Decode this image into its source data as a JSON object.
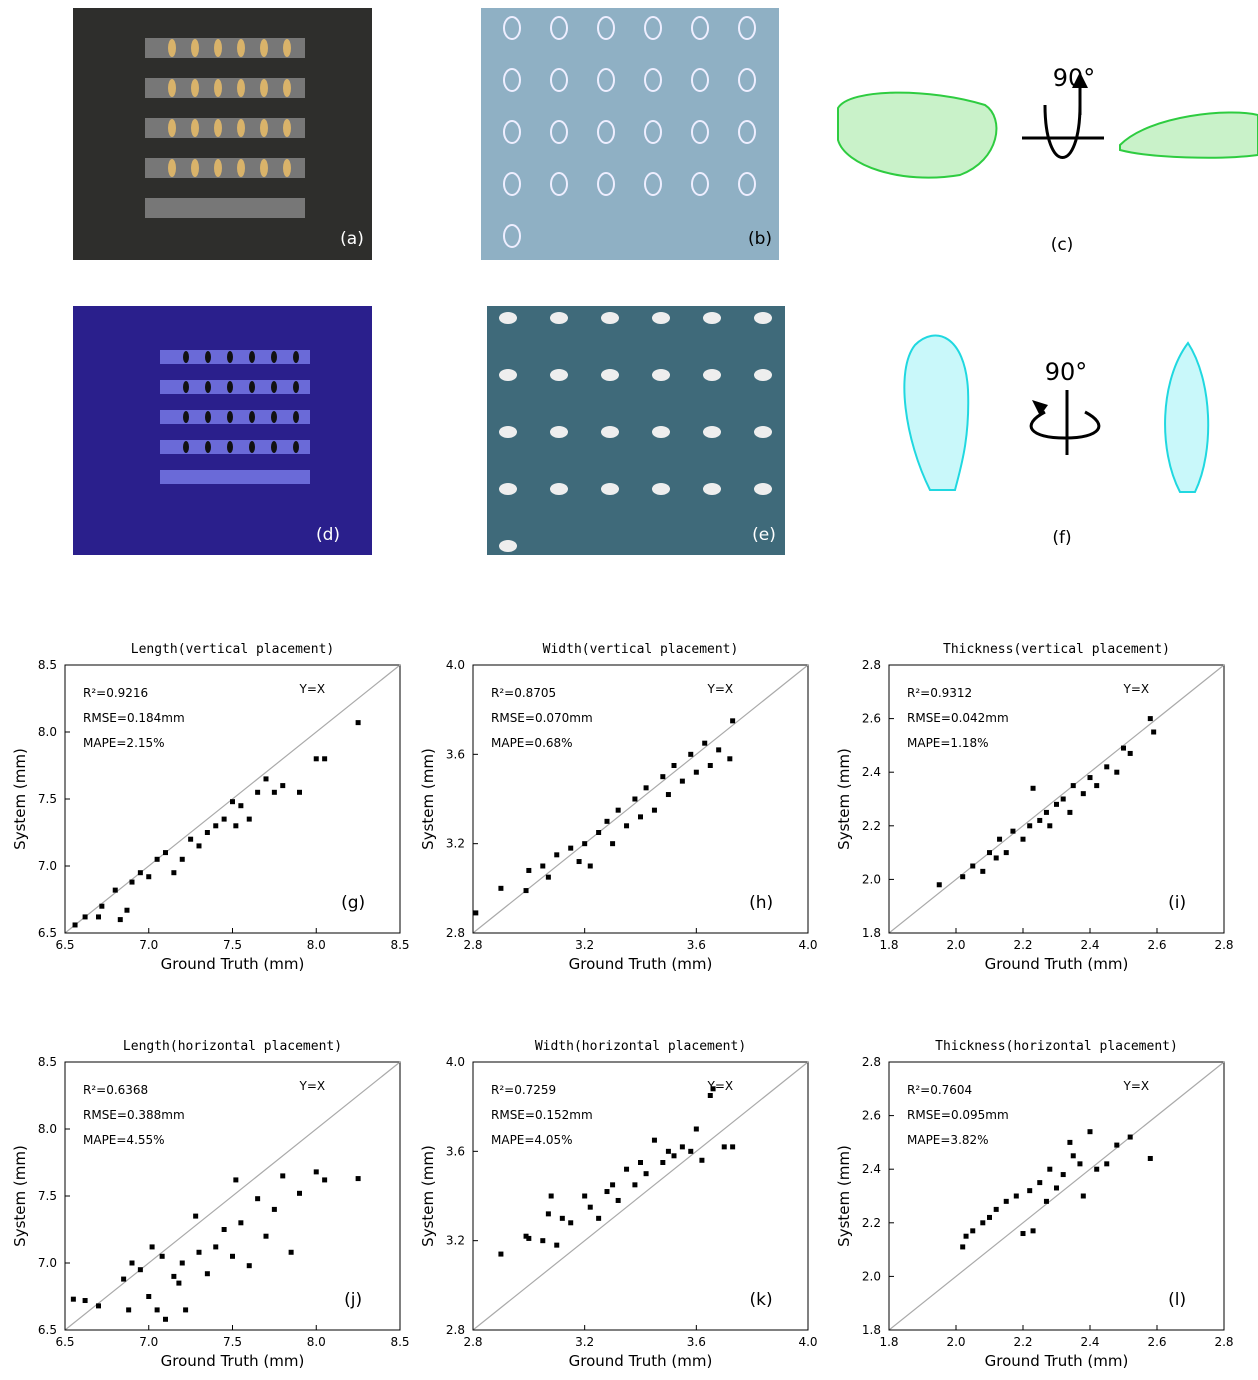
{
  "panels": {
    "labels": [
      "(a)",
      "(b)",
      "(c)",
      "(d)",
      "(e)",
      "(f)"
    ],
    "rotation_labels": [
      "90°",
      "90°"
    ]
  },
  "chart_data": [
    {
      "type": "scatter",
      "title": "Length(vertical placement)",
      "xlabel": "Ground Truth (mm)",
      "ylabel": "System (mm)",
      "panel_label": "(g)",
      "annotations": [
        "R²=0.9216",
        "RMSE=0.184mm",
        "MAPE=2.15%"
      ],
      "reference_label": "Y=X",
      "color": "#000000",
      "xlim": [
        6.5,
        8.5
      ],
      "ylim": [
        6.5,
        8.5
      ],
      "xticks": [
        6.5,
        {
          "value": 7,
          "label": "7.0"
        },
        7.5,
        {
          "value": 8,
          "label": "8.0"
        },
        8.5
      ],
      "yticks": [
        6.5,
        {
          "value": 7,
          "label": "7.0"
        },
        7.5,
        {
          "value": 8,
          "label": "8.0"
        },
        8.5
      ],
      "x": [
        6.56,
        6.62,
        6.7,
        6.72,
        6.8,
        6.83,
        6.87,
        6.9,
        6.95,
        7.0,
        7.05,
        7.1,
        7.15,
        7.2,
        7.25,
        7.3,
        7.35,
        7.4,
        7.45,
        7.5,
        7.52,
        7.55,
        7.6,
        7.65,
        7.7,
        7.75,
        7.8,
        7.9,
        8.0,
        8.05,
        8.25
      ],
      "values": [
        6.56,
        6.62,
        6.62,
        6.7,
        6.82,
        6.6,
        6.67,
        6.88,
        6.95,
        6.92,
        7.05,
        7.1,
        6.95,
        7.05,
        7.2,
        7.15,
        7.25,
        7.3,
        7.35,
        7.48,
        7.3,
        7.45,
        7.35,
        7.55,
        7.65,
        7.55,
        7.6,
        7.55,
        7.8,
        7.8,
        8.07
      ]
    },
    {
      "type": "scatter",
      "title": "Width(vertical placement)",
      "xlabel": "Ground Truth (mm)",
      "ylabel": "System (mm)",
      "panel_label": "(h)",
      "annotations": [
        "R²=0.8705",
        "RMSE=0.070mm",
        "MAPE=0.68%"
      ],
      "reference_label": "Y=X",
      "color": "#000000",
      "xlim": [
        2.8,
        4.0
      ],
      "ylim": [
        2.8,
        4.0
      ],
      "xticks": [
        2.8,
        3.2,
        3.6,
        {
          "value": 4,
          "label": "4.0"
        }
      ],
      "yticks": [
        2.8,
        3.2,
        3.6,
        {
          "value": 4,
          "label": "4.0"
        }
      ],
      "x": [
        2.81,
        2.9,
        2.99,
        3.0,
        3.05,
        3.07,
        3.1,
        3.15,
        3.18,
        3.2,
        3.22,
        3.25,
        3.28,
        3.3,
        3.32,
        3.35,
        3.38,
        3.4,
        3.42,
        3.45,
        3.48,
        3.5,
        3.52,
        3.55,
        3.58,
        3.6,
        3.63,
        3.65,
        3.68,
        3.72,
        3.73
      ],
      "values": [
        2.89,
        3.0,
        2.99,
        3.08,
        3.1,
        3.05,
        3.15,
        3.18,
        3.12,
        3.2,
        3.1,
        3.25,
        3.3,
        3.2,
        3.35,
        3.28,
        3.4,
        3.32,
        3.45,
        3.35,
        3.5,
        3.42,
        3.55,
        3.48,
        3.6,
        3.52,
        3.65,
        3.55,
        3.62,
        3.58,
        3.75
      ]
    },
    {
      "type": "scatter",
      "title": "Thickness(vertical placement)",
      "xlabel": "Ground Truth (mm)",
      "ylabel": "System (mm)",
      "panel_label": "(i)",
      "annotations": [
        "R²=0.9312",
        "RMSE=0.042mm",
        "MAPE=1.18%"
      ],
      "reference_label": "Y=X",
      "color": "#000000",
      "xlim": [
        1.8,
        2.8
      ],
      "ylim": [
        1.8,
        2.8
      ],
      "xticks": [
        1.8,
        {
          "value": 2,
          "label": "2.0"
        },
        2.2,
        2.4,
        2.6,
        2.8
      ],
      "yticks": [
        1.8,
        {
          "value": 2,
          "label": "2.0"
        },
        2.2,
        2.4,
        2.6,
        2.8
      ],
      "x": [
        1.95,
        2.02,
        2.05,
        2.08,
        2.1,
        2.12,
        2.13,
        2.15,
        2.17,
        2.2,
        2.22,
        2.23,
        2.25,
        2.27,
        2.28,
        2.3,
        2.32,
        2.34,
        2.35,
        2.38,
        2.4,
        2.42,
        2.45,
        2.48,
        2.5,
        2.52,
        2.58,
        2.59
      ],
      "values": [
        1.98,
        2.01,
        2.05,
        2.03,
        2.1,
        2.08,
        2.15,
        2.1,
        2.18,
        2.15,
        2.2,
        2.34,
        2.22,
        2.25,
        2.2,
        2.28,
        2.3,
        2.25,
        2.35,
        2.32,
        2.38,
        2.35,
        2.42,
        2.4,
        2.49,
        2.47,
        2.6,
        2.55
      ]
    },
    {
      "type": "scatter",
      "title": "Length(horizontal placement)",
      "xlabel": "Ground Truth (mm)",
      "ylabel": "System (mm)",
      "panel_label": "(j)",
      "annotations": [
        "R²=0.6368",
        "RMSE=0.388mm",
        "MAPE=4.55%"
      ],
      "reference_label": "Y=X",
      "color": "#000000",
      "xlim": [
        6.5,
        8.5
      ],
      "ylim": [
        6.5,
        8.5
      ],
      "xticks": [
        6.5,
        {
          "value": 7,
          "label": "7.0"
        },
        7.5,
        {
          "value": 8,
          "label": "8.0"
        },
        8.5
      ],
      "yticks": [
        6.5,
        {
          "value": 7,
          "label": "7.0"
        },
        7.5,
        {
          "value": 8,
          "label": "8.0"
        },
        8.5
      ],
      "x": [
        6.55,
        6.62,
        6.7,
        6.85,
        6.88,
        6.9,
        6.95,
        7.0,
        7.02,
        7.05,
        7.08,
        7.1,
        7.15,
        7.18,
        7.2,
        7.22,
        7.28,
        7.3,
        7.35,
        7.4,
        7.45,
        7.5,
        7.52,
        7.55,
        7.6,
        7.65,
        7.7,
        7.75,
        7.8,
        7.85,
        7.9,
        8.0,
        8.05,
        8.25
      ],
      "values": [
        6.73,
        6.72,
        6.68,
        6.88,
        6.65,
        7.0,
        6.95,
        6.75,
        7.12,
        6.65,
        7.05,
        6.58,
        6.9,
        6.85,
        7.0,
        6.65,
        7.35,
        7.08,
        6.92,
        7.12,
        7.25,
        7.05,
        7.62,
        7.3,
        6.98,
        7.48,
        7.2,
        7.4,
        7.65,
        7.08,
        7.52,
        7.68,
        7.62,
        7.63
      ]
    },
    {
      "type": "scatter",
      "title": "Width(horizontal placement)",
      "xlabel": "Ground Truth (mm)",
      "ylabel": "System (mm)",
      "panel_label": "(k)",
      "annotations": [
        "R²=0.7259",
        "RMSE=0.152mm",
        "MAPE=4.05%"
      ],
      "reference_label": "Y=X",
      "color": "#000000",
      "xlim": [
        2.8,
        4.0
      ],
      "ylim": [
        2.8,
        4.0
      ],
      "xticks": [
        2.8,
        3.2,
        3.6,
        {
          "value": 4,
          "label": "4.0"
        }
      ],
      "yticks": [
        2.8,
        3.2,
        3.6,
        {
          "value": 4,
          "label": "4.0"
        }
      ],
      "x": [
        2.9,
        2.99,
        3.0,
        3.05,
        3.07,
        3.08,
        3.1,
        3.12,
        3.15,
        3.2,
        3.22,
        3.25,
        3.28,
        3.3,
        3.32,
        3.35,
        3.38,
        3.4,
        3.42,
        3.45,
        3.48,
        3.5,
        3.52,
        3.55,
        3.58,
        3.6,
        3.62,
        3.65,
        3.66,
        3.7,
        3.73
      ],
      "values": [
        3.14,
        3.22,
        3.21,
        3.2,
        3.32,
        3.4,
        3.18,
        3.3,
        3.28,
        3.4,
        3.35,
        3.3,
        3.42,
        3.45,
        3.38,
        3.52,
        3.45,
        3.55,
        3.5,
        3.65,
        3.55,
        3.6,
        3.58,
        3.62,
        3.6,
        3.7,
        3.56,
        3.85,
        3.88,
        3.62,
        3.62
      ]
    },
    {
      "type": "scatter",
      "title": "Thickness(horizontal placement)",
      "xlabel": "Ground Truth (mm)",
      "ylabel": "System (mm)",
      "panel_label": "(l)",
      "annotations": [
        "R²=0.7604",
        "RMSE=0.095mm",
        "MAPE=3.82%"
      ],
      "reference_label": "Y=X",
      "color": "#000000",
      "xlim": [
        1.8,
        2.8
      ],
      "ylim": [
        1.8,
        2.8
      ],
      "xticks": [
        1.8,
        {
          "value": 2,
          "label": "2.0"
        },
        2.2,
        2.4,
        2.6,
        2.8
      ],
      "yticks": [
        1.8,
        {
          "value": 2,
          "label": "2.0"
        },
        2.2,
        2.4,
        2.6,
        2.8
      ],
      "x": [
        2.02,
        2.03,
        2.05,
        2.08,
        2.1,
        2.12,
        2.15,
        2.18,
        2.2,
        2.22,
        2.23,
        2.25,
        2.27,
        2.28,
        2.3,
        2.32,
        2.34,
        2.35,
        2.37,
        2.38,
        2.4,
        2.42,
        2.45,
        2.48,
        2.52,
        2.58
      ],
      "values": [
        2.11,
        2.15,
        2.17,
        2.2,
        2.22,
        2.25,
        2.28,
        2.3,
        2.16,
        2.32,
        2.17,
        2.35,
        2.28,
        2.4,
        2.33,
        2.38,
        2.5,
        2.45,
        2.42,
        2.3,
        2.54,
        2.4,
        2.42,
        2.49,
        2.52,
        2.44
      ]
    }
  ]
}
